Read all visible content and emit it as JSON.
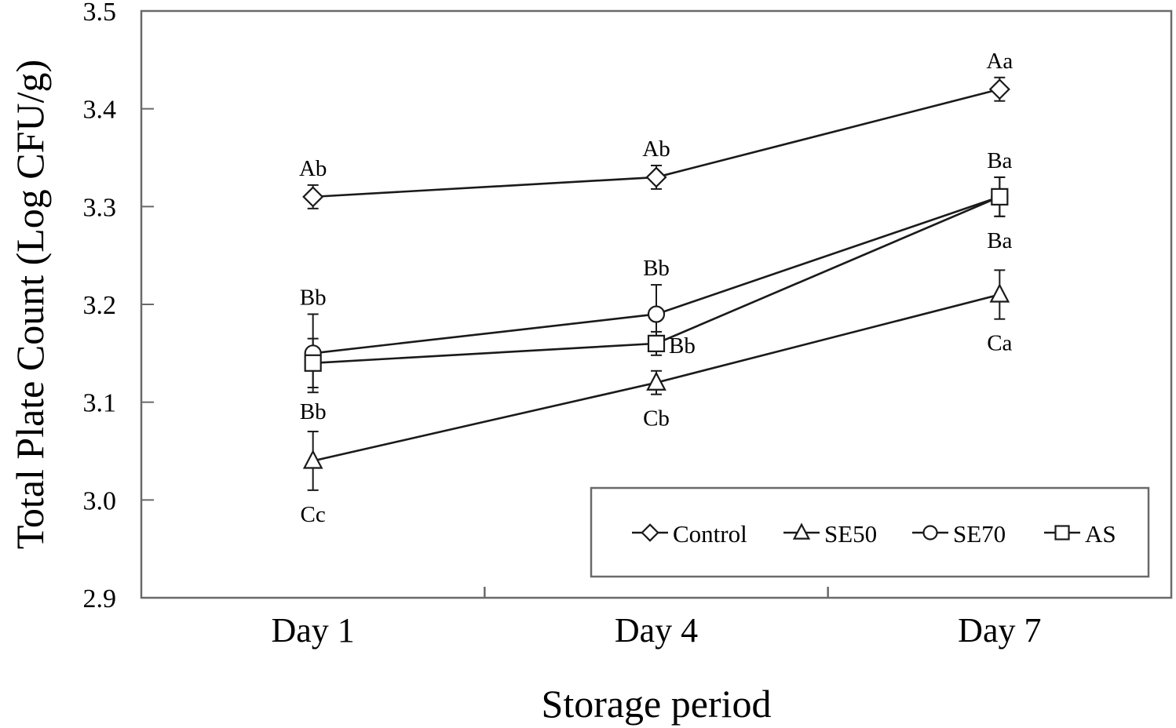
{
  "chart_data": {
    "type": "line",
    "title": "",
    "xlabel": "Storage period",
    "ylabel": "Total Plate Count (Log CFU/g)",
    "categories": [
      "Day 1",
      "Day 4",
      "Day 7"
    ],
    "ylim": [
      2.9,
      3.5
    ],
    "ytick_step": 0.1,
    "ytick_labels": [
      "2.9",
      "3.0",
      "3.1",
      "3.2",
      "3.3",
      "3.4",
      "3.5"
    ],
    "grid": false,
    "legend": {
      "position": "inside-bottom-right-box",
      "entries": [
        "Control",
        "SE50",
        "SE70",
        "AS"
      ]
    },
    "colors": {
      "frame": "#6a6a6a",
      "data": "#1a1a1a",
      "background": "#ffffff"
    },
    "series": [
      {
        "name": "Control",
        "marker": "diamond",
        "values": [
          3.31,
          3.33,
          3.42
        ],
        "errors": [
          0.012,
          0.012,
          0.012
        ],
        "point_labels": [
          "Ab",
          "Ab",
          "Aa"
        ],
        "label_sides": [
          "above",
          "above",
          "above"
        ]
      },
      {
        "name": "SE50",
        "marker": "triangle",
        "values": [
          3.04,
          3.12,
          3.21
        ],
        "errors": [
          0.03,
          0.012,
          0.025
        ],
        "point_labels": [
          "Cc",
          "Cb",
          "Ca"
        ],
        "label_sides": [
          "below",
          "below",
          "below"
        ]
      },
      {
        "name": "SE70",
        "marker": "circle",
        "values": [
          3.15,
          3.19,
          3.31
        ],
        "errors": [
          0.04,
          0.03,
          0.02
        ],
        "point_labels": [
          "Bb",
          "Bb",
          "Ba"
        ],
        "label_sides": [
          "above",
          "above",
          "above"
        ]
      },
      {
        "name": "AS",
        "marker": "square",
        "values": [
          3.14,
          3.16,
          3.31
        ],
        "errors": [
          0.025,
          0.012,
          0.02
        ],
        "point_labels": [
          "Bb",
          "Bb",
          "Ba"
        ],
        "label_sides": [
          "below",
          "right",
          "below"
        ]
      }
    ]
  }
}
